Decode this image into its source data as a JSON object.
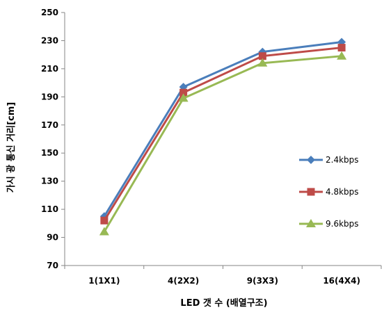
{
  "chart_data": {
    "type": "line",
    "xlabel": "LED 갯 수 (배열구조)",
    "ylabel": "가시 광 통신 거리[cm]",
    "categories": [
      "1(1X1)",
      "4(2X2)",
      "9(3X3)",
      "16(4X4)"
    ],
    "ylim": [
      70,
      250
    ],
    "yticks": [
      70,
      90,
      110,
      130,
      150,
      170,
      190,
      210,
      230,
      250
    ],
    "grid": false,
    "legend_position": "right",
    "series": [
      {
        "name": "2.4kbps",
        "values": [
          105,
          197,
          222,
          229
        ],
        "color": "#4a7ebb",
        "marker": "diamond"
      },
      {
        "name": "4.8kbps",
        "values": [
          102,
          193,
          219,
          225
        ],
        "color": "#be4b48",
        "marker": "square"
      },
      {
        "name": "9.6kbps",
        "values": [
          94,
          189,
          214,
          219
        ],
        "color": "#98b954",
        "marker": "triangle"
      }
    ]
  }
}
